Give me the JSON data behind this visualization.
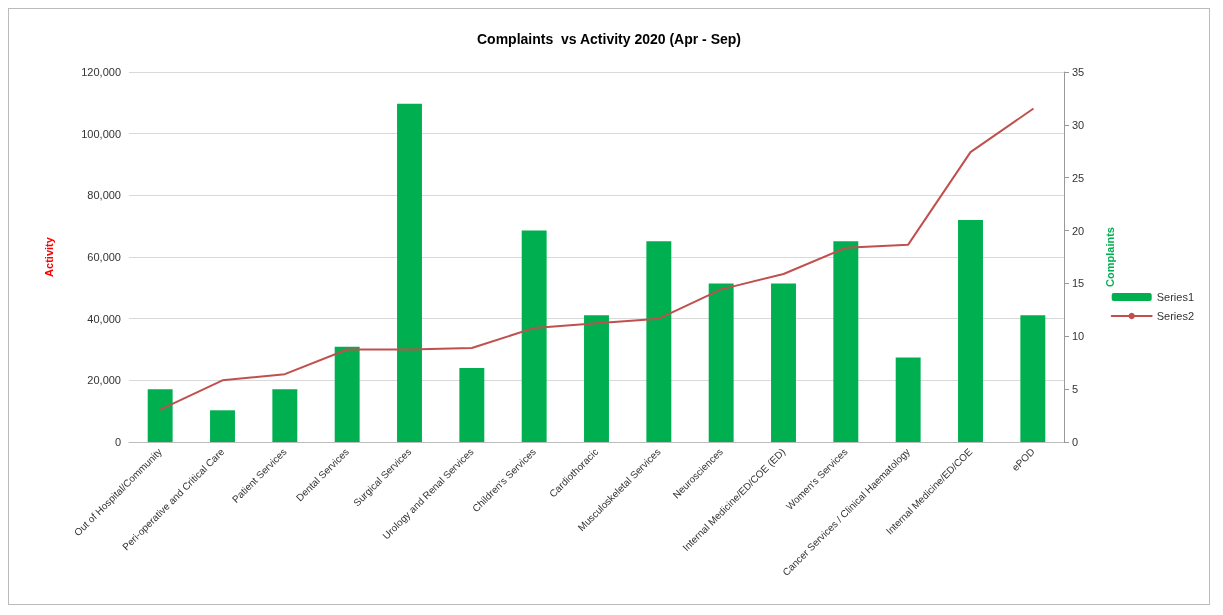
{
  "chart_data": {
    "type": "bar",
    "title": "Complaints  vs Activity 2020 (Apr - Sep)",
    "ylabel": "Activity",
    "y2label": "Complaints",
    "categories": [
      "Out of Hospital/Community",
      "Peri-operative and Critical Care",
      "Patient Services",
      "Dental Services",
      "Surgical Services",
      "Urology and Renal Services",
      "Children's Services",
      "Cardiothoracic",
      "Musculoskeletal Services",
      "Neurosciences",
      "Internal Medicine/ED/COE (ED)",
      "Women's Services",
      "Cancer Services / Clinical Haematology",
      "Internal Medicine/ED/COE",
      "ePOD"
    ],
    "series": [
      {
        "name": "Series1",
        "axis": "y2",
        "color": "#00b050",
        "values": [
          5,
          3,
          5,
          9,
          32,
          7,
          20,
          12,
          19,
          15,
          15,
          19,
          8,
          21,
          12
        ]
      },
      {
        "name": "Series2",
        "type": "line",
        "axis": "y",
        "color": "#c0504d",
        "values": [
          10500,
          20000,
          22000,
          30000,
          30000,
          30500,
          37000,
          38500,
          40000,
          49500,
          54500,
          63000,
          64000,
          94000,
          108000
        ]
      }
    ],
    "ylim": [
      0,
      120000
    ],
    "yticks": [
      {
        "value": 0,
        "label": "0"
      },
      {
        "value": 20000,
        "label": "20,000"
      },
      {
        "value": 40000,
        "label": "40,000"
      },
      {
        "value": 60000,
        "label": "60,000"
      },
      {
        "value": 80000,
        "label": "80,000"
      },
      {
        "value": 100000,
        "label": "100,000"
      },
      {
        "value": 120000,
        "label": "120,000"
      }
    ],
    "y2lim": [
      0,
      35
    ],
    "y2ticks": [
      0,
      5,
      10,
      15,
      20,
      25,
      30,
      35
    ],
    "grid": "y",
    "legend": "right",
    "marker": "none",
    "line_style": "solid"
  }
}
